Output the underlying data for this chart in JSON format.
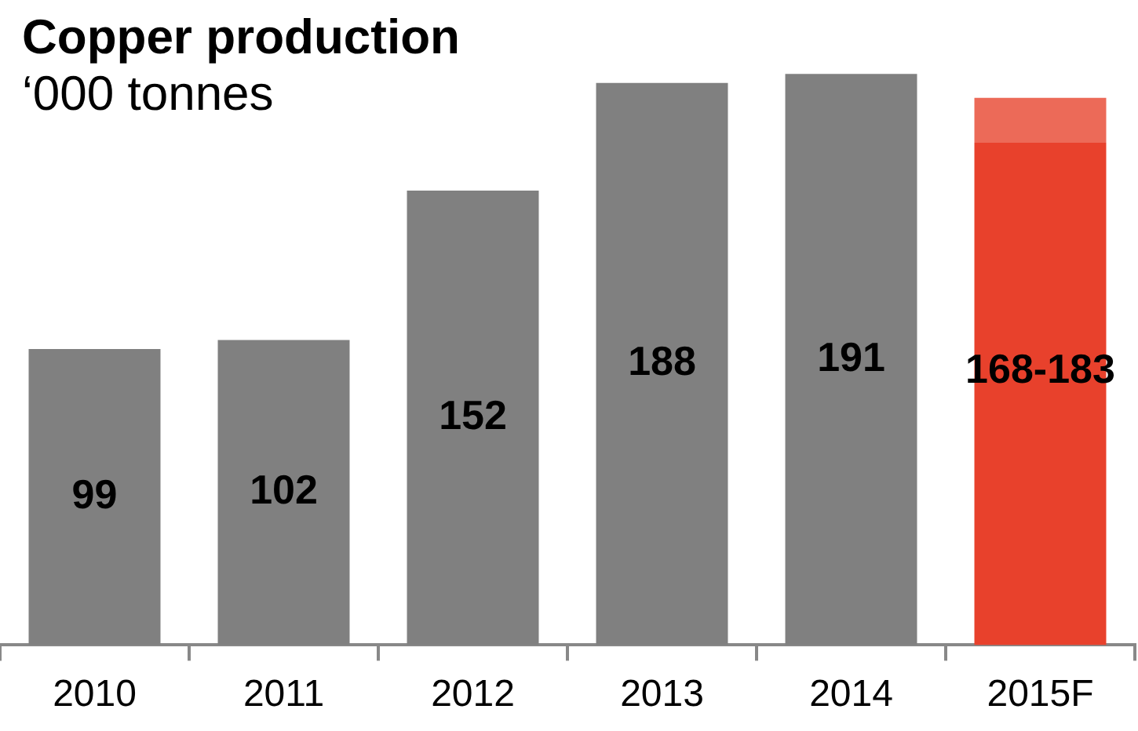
{
  "chart_data": {
    "type": "bar",
    "title": "Copper production",
    "subtitle": "‘000 tonnes",
    "categories": [
      "2010",
      "2011",
      "2012",
      "2013",
      "2014",
      "2015F"
    ],
    "stacked": true,
    "legend": false,
    "series": [
      {
        "colors": [
          "#808080",
          "#808080",
          "#808080",
          "#808080",
          "#808080",
          "#e8412c"
        ],
        "values": [
          99,
          102,
          152,
          188,
          191,
          168
        ],
        "value_labels": [
          "99",
          "102",
          "152",
          "188",
          "191",
          "168-183"
        ]
      },
      {
        "color": "#ec6a58",
        "values": [
          null,
          null,
          null,
          null,
          null,
          15
        ]
      }
    ]
  }
}
